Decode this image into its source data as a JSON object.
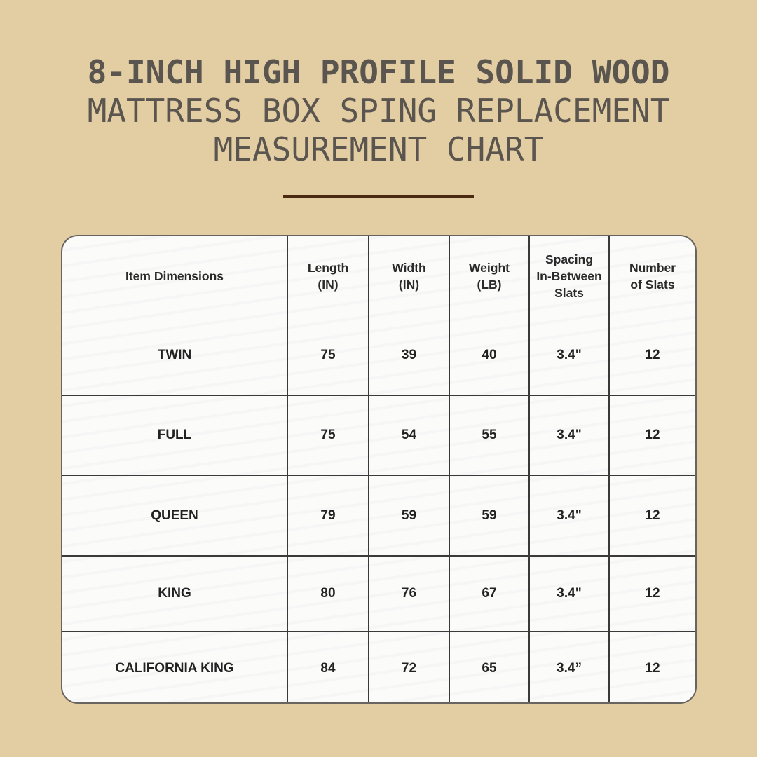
{
  "title": {
    "line1": "8-INCH HIGH PROFILE SOLID WOOD",
    "line2": "MATTRESS BOX SPING REPLACEMENT",
    "line3": "MEASUREMENT CHART"
  },
  "colors": {
    "background": "#e3cda3",
    "title": "#5b5550",
    "separator": "#4a2a10"
  },
  "table": {
    "headers": [
      [
        "Item Dimensions"
      ],
      [
        "Length",
        "(IN)"
      ],
      [
        "Width",
        "(IN)"
      ],
      [
        "Weight",
        "(LB)"
      ],
      [
        "Spacing",
        "In-Between",
        "Slats"
      ],
      [
        "Number",
        "of Slats"
      ]
    ],
    "rows": [
      [
        "TWIN",
        "75",
        "39",
        "40",
        "3.4\"",
        "12"
      ],
      [
        "FULL",
        "75",
        "54",
        "55",
        "3.4\"",
        "12"
      ],
      [
        "QUEEN",
        "79",
        "59",
        "59",
        "3.4\"",
        "12"
      ],
      [
        "KING",
        "80",
        "76",
        "67",
        "3.4\"",
        "12"
      ],
      [
        "CALIFORNIA KING",
        "84",
        "72",
        "65",
        "3.4”",
        "12"
      ]
    ]
  }
}
